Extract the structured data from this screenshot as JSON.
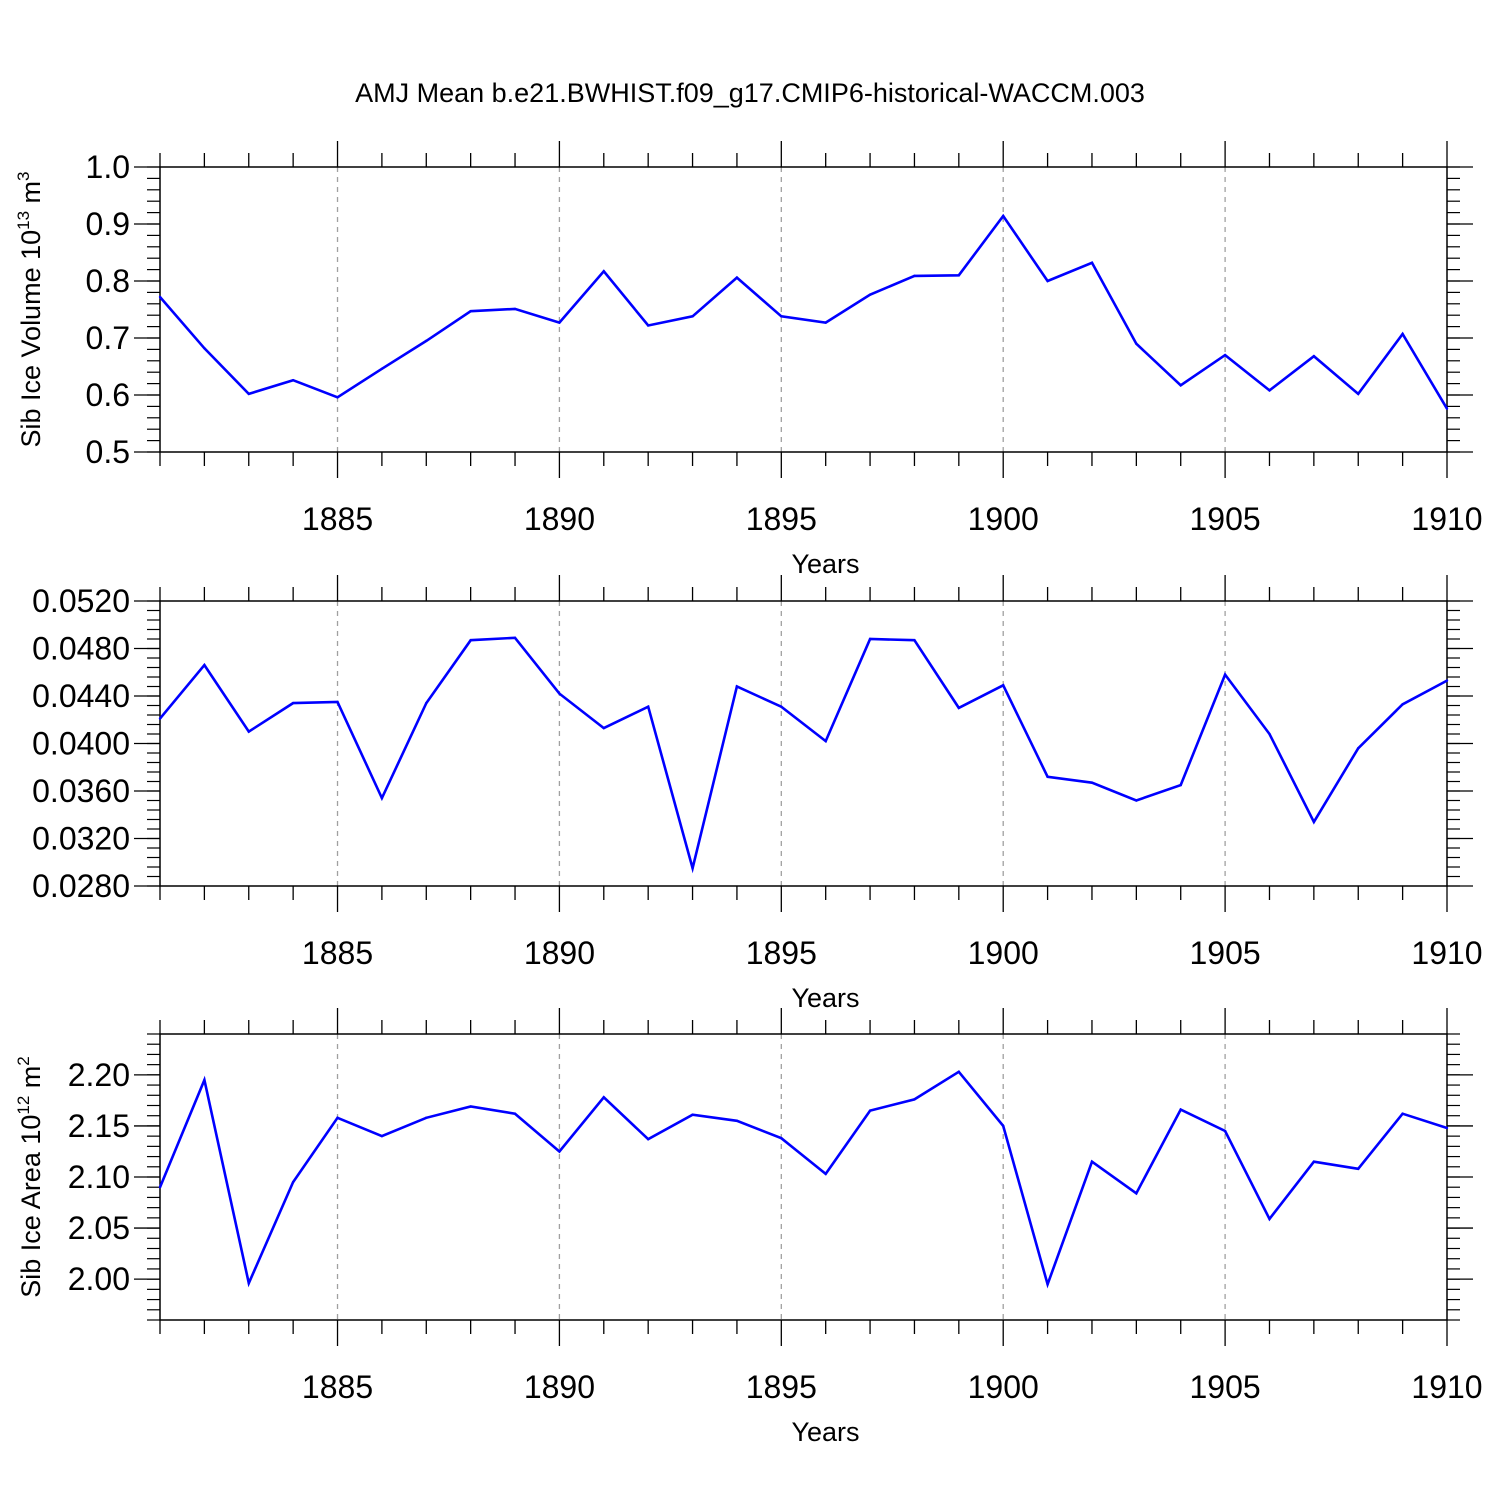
{
  "title": "AMJ Mean b.e21.BWHIST.f09_g17.CMIP6-historical-WACCM.003",
  "colors": {
    "line": "#0000ff",
    "frame": "#000000",
    "grid": "#a0a0a0",
    "background": "#ffffff"
  },
  "chart_data": [
    {
      "type": "line",
      "xlabel": "Years",
      "ylabel_base": "Sib Ice Volume 10",
      "ylabel_exp": "13",
      "ylabel_unit": " m",
      "ylabel_unit_exp": "3",
      "xlim": [
        1881,
        1910
      ],
      "ylim": [
        0.5,
        1.0
      ],
      "yticks": [
        "0.5",
        "0.6",
        "0.7",
        "0.8",
        "0.9",
        "1.0"
      ],
      "xticks": [
        "1885",
        "1890",
        "1895",
        "1900",
        "1905",
        "1910"
      ],
      "grid": "vertical dashed at major x ticks",
      "series": [
        {
          "x": [
            1881,
            1882,
            1883,
            1884,
            1885,
            1886,
            1887,
            1888,
            1889,
            1890,
            1891,
            1892,
            1893,
            1894,
            1895,
            1896,
            1897,
            1898,
            1899,
            1900,
            1901,
            1902,
            1903,
            1904,
            1905,
            1906,
            1907,
            1908,
            1909,
            1910
          ],
          "values": [
            0.772,
            0.682,
            0.602,
            0.626,
            0.596,
            0.646,
            0.695,
            0.747,
            0.751,
            0.727,
            0.817,
            0.722,
            0.738,
            0.806,
            0.738,
            0.727,
            0.776,
            0.809,
            0.81,
            0.914,
            0.8,
            0.832,
            0.69,
            0.617,
            0.67,
            0.608,
            0.668,
            0.602,
            0.707,
            0.576
          ]
        }
      ]
    },
    {
      "type": "line",
      "xlabel": "Years",
      "xlim": [
        1881,
        1910
      ],
      "ylim": [
        0.028,
        0.052
      ],
      "yticks": [
        "0.0280",
        "0.0320",
        "0.0360",
        "0.0400",
        "0.0440",
        "0.0480",
        "0.0520"
      ],
      "xticks": [
        "1885",
        "1890",
        "1895",
        "1900",
        "1905",
        "1910"
      ],
      "grid": "vertical dashed at major x ticks",
      "series": [
        {
          "x": [
            1881,
            1882,
            1883,
            1884,
            1885,
            1886,
            1887,
            1888,
            1889,
            1890,
            1891,
            1892,
            1893,
            1894,
            1895,
            1896,
            1897,
            1898,
            1899,
            1900,
            1901,
            1902,
            1903,
            1904,
            1905,
            1906,
            1907,
            1908,
            1909,
            1910
          ],
          "values": [
            0.0421,
            0.0466,
            0.041,
            0.0434,
            0.0435,
            0.0354,
            0.0434,
            0.0487,
            0.0489,
            0.0442,
            0.0413,
            0.0431,
            0.0295,
            0.0448,
            0.0431,
            0.0402,
            0.0488,
            0.0487,
            0.043,
            0.0449,
            0.0372,
            0.0367,
            0.0352,
            0.0365,
            0.0458,
            0.0408,
            0.0334,
            0.0396,
            0.0433,
            0.0453
          ]
        }
      ]
    },
    {
      "type": "line",
      "xlabel": "Years",
      "ylabel_base": "Sib Ice Area 10",
      "ylabel_exp": "12",
      "ylabel_unit": " m",
      "ylabel_unit_exp": "2",
      "xlim": [
        1881,
        1910
      ],
      "ylim": [
        1.96,
        2.24
      ],
      "yticks": [
        "2.00",
        "2.05",
        "2.10",
        "2.15",
        "2.20"
      ],
      "xticks": [
        "1885",
        "1890",
        "1895",
        "1900",
        "1905",
        "1910"
      ],
      "grid": "vertical dashed at major x ticks",
      "series": [
        {
          "x": [
            1881,
            1882,
            1883,
            1884,
            1885,
            1886,
            1887,
            1888,
            1889,
            1890,
            1891,
            1892,
            1893,
            1894,
            1895,
            1896,
            1897,
            1898,
            1899,
            1900,
            1901,
            1902,
            1903,
            1904,
            1905,
            1906,
            1907,
            1908,
            1909,
            1910
          ],
          "values": [
            2.09,
            2.195,
            1.996,
            2.095,
            2.158,
            2.14,
            2.158,
            2.169,
            2.162,
            2.125,
            2.178,
            2.137,
            2.161,
            2.155,
            2.138,
            2.103,
            2.165,
            2.176,
            2.203,
            2.15,
            1.995,
            2.115,
            2.084,
            2.166,
            2.145,
            2.059,
            2.115,
            2.108,
            2.162,
            2.148
          ]
        }
      ]
    }
  ]
}
